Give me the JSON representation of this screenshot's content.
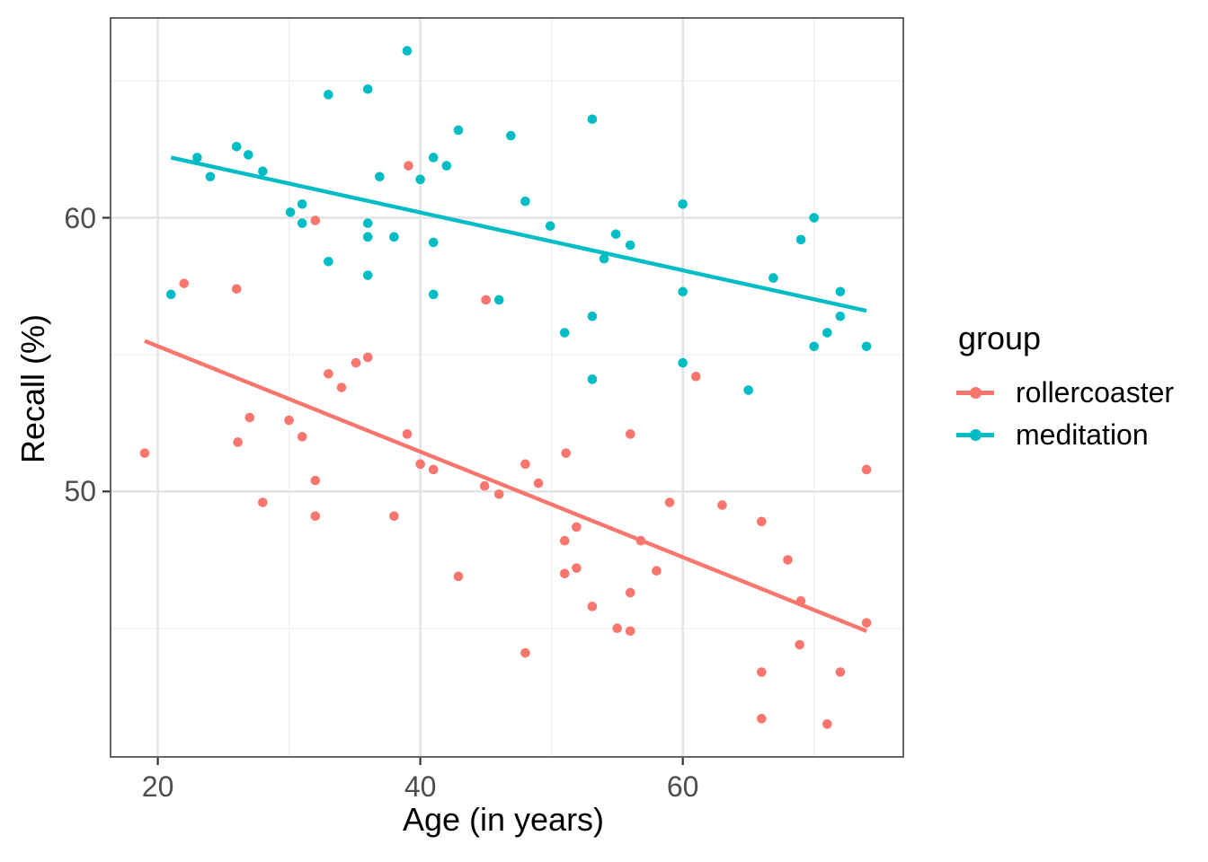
{
  "figure": {
    "background": "#FFFFFF",
    "panel_border_color": "#333333",
    "grid_major_color": "#E4E4E4",
    "grid_minor_color": "#F0F0F0",
    "tick_mark_color": "#333333",
    "axis_text_color": "#4D4D4D",
    "axis_title_color": "#000000"
  },
  "chart_data": {
    "type": "scatter",
    "title": "",
    "xlabel": "Age (in years)",
    "ylabel": "Recall (%)",
    "legend_title": "group",
    "legend_position": "right",
    "grid": true,
    "x_domain": [
      16.4,
      76.8
    ],
    "y_domain": [
      40.3,
      67.3
    ],
    "x_ticks": {
      "major": [
        20,
        40,
        60
      ],
      "labels": [
        "20",
        "40",
        "60"
      ],
      "minor": [
        30,
        50,
        70
      ]
    },
    "y_ticks": {
      "major": [
        50,
        60
      ],
      "labels": [
        "50",
        "60"
      ],
      "minor": [
        45,
        55,
        65
      ]
    },
    "series": [
      {
        "name": "rollercoaster",
        "color": "#F8766D",
        "trend": {
          "x": [
            19,
            74
          ],
          "y": [
            55.5,
            44.9
          ]
        },
        "points": [
          [
            39.1,
            61.9
          ],
          [
            32,
            59.9
          ],
          [
            22,
            57.6
          ],
          [
            26,
            57.4
          ],
          [
            45,
            57
          ],
          [
            35.1,
            54.7
          ],
          [
            36,
            54.9
          ],
          [
            33,
            54.3
          ],
          [
            34,
            53.8
          ],
          [
            27,
            52.7
          ],
          [
            30,
            52.6
          ],
          [
            31,
            52
          ],
          [
            26.1,
            51.8
          ],
          [
            19,
            51.4
          ],
          [
            39,
            52.1
          ],
          [
            40,
            51
          ],
          [
            41,
            50.8
          ],
          [
            32,
            50.4
          ],
          [
            44.9,
            50.2
          ],
          [
            46,
            49.9
          ],
          [
            28,
            49.6
          ],
          [
            32,
            49.1
          ],
          [
            38,
            49.1
          ],
          [
            42.9,
            46.9
          ],
          [
            61,
            54.2
          ],
          [
            56,
            52.1
          ],
          [
            51.1,
            51.4
          ],
          [
            48,
            51
          ],
          [
            49,
            50.3
          ],
          [
            74,
            50.8
          ],
          [
            59,
            49.6
          ],
          [
            63,
            49.5
          ],
          [
            66,
            48.9
          ],
          [
            51.9,
            48.7
          ],
          [
            51,
            48.2
          ],
          [
            56.8,
            48.2
          ],
          [
            68,
            47.5
          ],
          [
            51.9,
            47.2
          ],
          [
            51,
            47
          ],
          [
            58,
            47.1
          ],
          [
            56,
            46.3
          ],
          [
            53.1,
            45.8
          ],
          [
            69,
            46
          ],
          [
            55,
            45
          ],
          [
            56,
            44.9
          ],
          [
            74,
            45.2
          ],
          [
            68.9,
            44.4
          ],
          [
            48,
            44.1
          ],
          [
            66,
            43.4
          ],
          [
            72,
            43.4
          ],
          [
            66,
            41.7
          ],
          [
            71,
            41.5
          ]
        ]
      },
      {
        "name": "meditation",
        "color": "#00BCC4",
        "trend": {
          "x": [
            21,
            74
          ],
          "y": [
            62.2,
            56.6
          ]
        },
        "points": [
          [
            39,
            66.1
          ],
          [
            33,
            64.5
          ],
          [
            36,
            64.7
          ],
          [
            42.9,
            63.2
          ],
          [
            26,
            62.6
          ],
          [
            26.9,
            62.3
          ],
          [
            23,
            62.2
          ],
          [
            28,
            61.7
          ],
          [
            24,
            61.5
          ],
          [
            36.9,
            61.5
          ],
          [
            40,
            61.4
          ],
          [
            41,
            62.2
          ],
          [
            42,
            61.9
          ],
          [
            31,
            60.5
          ],
          [
            30.1,
            60.2
          ],
          [
            31,
            59.8
          ],
          [
            36,
            59.8
          ],
          [
            36,
            59.3
          ],
          [
            38,
            59.3
          ],
          [
            41,
            59.1
          ],
          [
            33,
            58.4
          ],
          [
            36,
            57.9
          ],
          [
            21,
            57.2
          ],
          [
            41,
            57.2
          ],
          [
            46,
            57
          ],
          [
            53.1,
            63.6
          ],
          [
            46.9,
            63
          ],
          [
            48,
            60.6
          ],
          [
            60,
            60.5
          ],
          [
            49.9,
            59.7
          ],
          [
            54.9,
            59.4
          ],
          [
            56,
            59
          ],
          [
            54,
            58.5
          ],
          [
            70,
            60
          ],
          [
            69,
            59.2
          ],
          [
            66.9,
            57.8
          ],
          [
            60,
            57.3
          ],
          [
            72,
            57.3
          ],
          [
            53.1,
            56.4
          ],
          [
            72,
            56.4
          ],
          [
            51,
            55.8
          ],
          [
            71,
            55.8
          ],
          [
            70,
            55.3
          ],
          [
            74,
            55.3
          ],
          [
            60,
            54.7
          ],
          [
            53.1,
            54.1
          ],
          [
            65,
            53.7
          ]
        ]
      }
    ]
  }
}
